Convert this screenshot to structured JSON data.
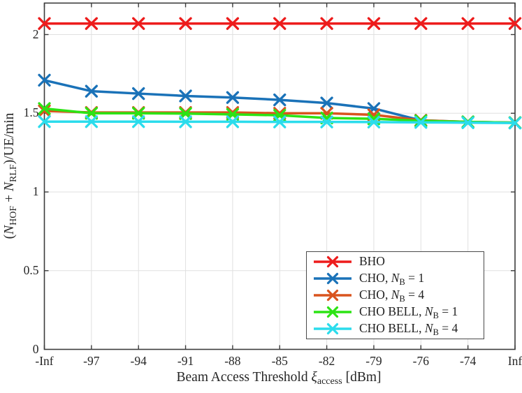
{
  "chart_data": {
    "type": "line",
    "title": "",
    "xlabel": "Beam Access Threshold ξ_access [dBm]",
    "ylabel": "(N_HOF + N_RLF)/UE/min",
    "categories": [
      "-Inf",
      "-97",
      "-94",
      "-91",
      "-88",
      "-85",
      "-82",
      "-79",
      "-76",
      "-74",
      "Inf"
    ],
    "y_ticks": [
      0,
      0.5,
      1,
      1.5,
      2
    ],
    "ylim": [
      0,
      2.2
    ],
    "grid": true,
    "marker": "x",
    "legend_position": "inside-lower-right",
    "series": [
      {
        "id": "bho",
        "name": "BHO",
        "color": "#ed1c1c",
        "values": [
          2.07,
          2.07,
          2.07,
          2.07,
          2.07,
          2.07,
          2.07,
          2.07,
          2.07,
          2.07,
          2.07
        ]
      },
      {
        "id": "cho-nb1",
        "name": "CHO, N_B = 1",
        "color": "#1a72b8",
        "values": [
          1.71,
          1.64,
          1.625,
          1.61,
          1.6,
          1.585,
          1.565,
          1.53,
          1.455,
          1.445,
          1.44
        ]
      },
      {
        "id": "cho-nb4",
        "name": "CHO, N_B = 4",
        "color": "#d9541e",
        "values": [
          1.515,
          1.505,
          1.505,
          1.505,
          1.505,
          1.5,
          1.5,
          1.49,
          1.455,
          1.445,
          1.44
        ]
      },
      {
        "id": "cho-bell-nb1",
        "name": "CHO BELL, N_B = 1",
        "color": "#2ce314",
        "values": [
          1.53,
          1.5,
          1.5,
          1.498,
          1.493,
          1.487,
          1.47,
          1.465,
          1.452,
          1.445,
          1.44
        ]
      },
      {
        "id": "cho-bell-nb4",
        "name": "CHO BELL, N_B = 4",
        "color": "#2bdcec",
        "values": [
          1.447,
          1.447,
          1.447,
          1.446,
          1.446,
          1.445,
          1.445,
          1.444,
          1.442,
          1.44,
          1.438
        ]
      }
    ]
  },
  "labels": {
    "ylabel_parts": [
      [
        "(",
        ""
      ],
      [
        "N",
        "i"
      ],
      [
        "HOF",
        "sub"
      ],
      [
        " + ",
        ""
      ],
      [
        "N",
        "i"
      ],
      [
        "RLF",
        "sub"
      ],
      [
        ")/UE/min",
        ""
      ]
    ],
    "xlabel_parts": [
      [
        "Beam Access Threshold ",
        ""
      ],
      [
        "ξ",
        "i"
      ],
      [
        "access",
        "sub"
      ],
      [
        " [dBm]",
        ""
      ]
    ],
    "legend": [
      {
        "id": "bho",
        "parts": [
          [
            "BHO",
            ""
          ]
        ]
      },
      {
        "id": "cho-nb1",
        "parts": [
          [
            "CHO, ",
            ""
          ],
          [
            "N",
            "i"
          ],
          [
            "B",
            "sub"
          ],
          [
            " = 1",
            ""
          ]
        ]
      },
      {
        "id": "cho-nb4",
        "parts": [
          [
            "CHO, ",
            ""
          ],
          [
            "N",
            "i"
          ],
          [
            "B",
            "sub"
          ],
          [
            " = 4",
            ""
          ]
        ]
      },
      {
        "id": "cho-bell-nb1",
        "parts": [
          [
            "CHO BELL, ",
            ""
          ],
          [
            "N",
            "i"
          ],
          [
            "B",
            "sub"
          ],
          [
            " = 1",
            ""
          ]
        ]
      },
      {
        "id": "cho-bell-nb4",
        "parts": [
          [
            "CHO BELL, ",
            ""
          ],
          [
            "N",
            "i"
          ],
          [
            "B",
            "sub"
          ],
          [
            " = 4",
            ""
          ]
        ]
      }
    ]
  },
  "style": {
    "axis_color": "#3c3c3c",
    "grid_color": "#e0e0e0",
    "text_color": "#262626",
    "background": "#ffffff"
  }
}
